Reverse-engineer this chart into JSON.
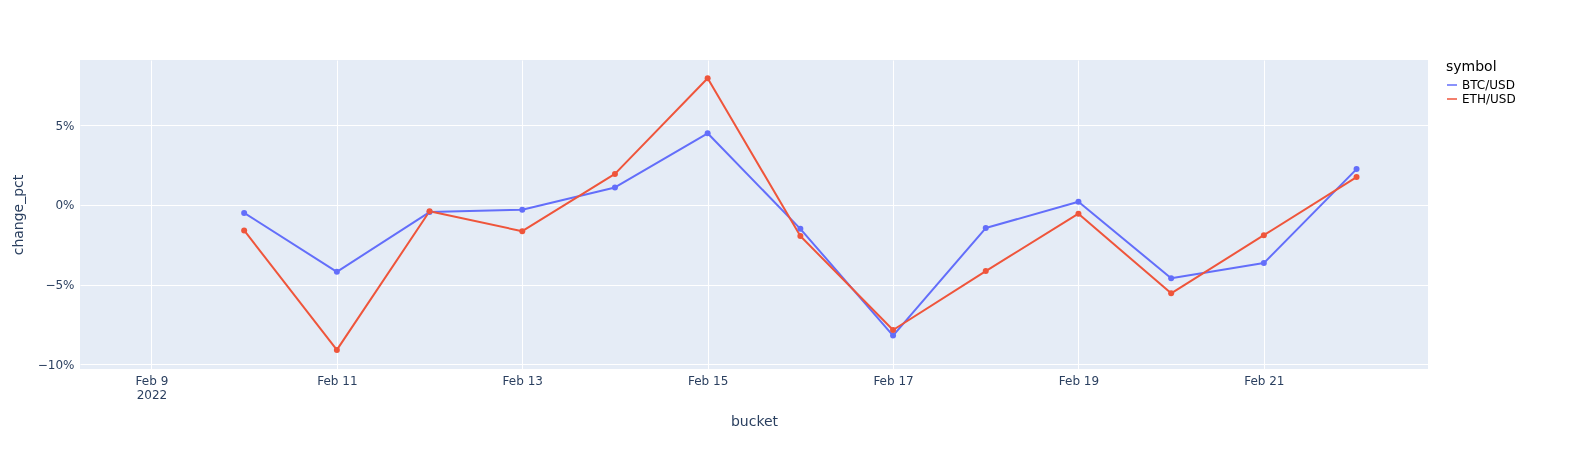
{
  "chart_data": {
    "type": "line",
    "xlabel": "bucket",
    "ylabel": "change_pct",
    "legend_title": "symbol",
    "x": [
      "2022-02-10",
      "2022-02-11",
      "2022-02-12",
      "2022-02-13",
      "2022-02-14",
      "2022-02-15",
      "2022-02-16",
      "2022-02-17",
      "2022-02-18",
      "2022-02-19",
      "2022-02-20",
      "2022-02-21",
      "2022-02-22"
    ],
    "series": [
      {
        "name": "BTC/USD",
        "color": "#636efa",
        "values": [
          -0.5,
          -4.2,
          -0.45,
          -0.3,
          1.1,
          4.5,
          -1.5,
          -8.2,
          -1.45,
          0.2,
          -4.6,
          -3.65,
          2.25
        ]
      },
      {
        "name": "ETH/USD",
        "color": "#ef553b",
        "values": [
          -1.6,
          -9.1,
          -0.4,
          -1.65,
          1.95,
          7.95,
          -1.95,
          -7.85,
          -4.15,
          -0.55,
          -5.55,
          -1.9,
          1.75
        ]
      }
    ],
    "xlim": [
      "2022-02-08T05:30",
      "2022-02-22T18:30"
    ],
    "xticks": [
      {
        "value": "2022-02-09",
        "label": "Feb 9\n2022"
      },
      {
        "value": "2022-02-11",
        "label": "Feb 11"
      },
      {
        "value": "2022-02-13",
        "label": "Feb 13"
      },
      {
        "value": "2022-02-15",
        "label": "Feb 15"
      },
      {
        "value": "2022-02-17",
        "label": "Feb 17"
      },
      {
        "value": "2022-02-19",
        "label": "Feb 19"
      },
      {
        "value": "2022-02-21",
        "label": "Feb 21"
      }
    ],
    "ylim": [
      -10.3,
      9.1
    ],
    "yticks": [
      {
        "value": -10,
        "label": "−10%"
      },
      {
        "value": -5,
        "label": "−5%"
      },
      {
        "value": 0,
        "label": "0%"
      },
      {
        "value": 5,
        "label": "5%"
      }
    ],
    "grid": true,
    "legend": "top right",
    "marker": "circle",
    "line_style": "solid"
  }
}
